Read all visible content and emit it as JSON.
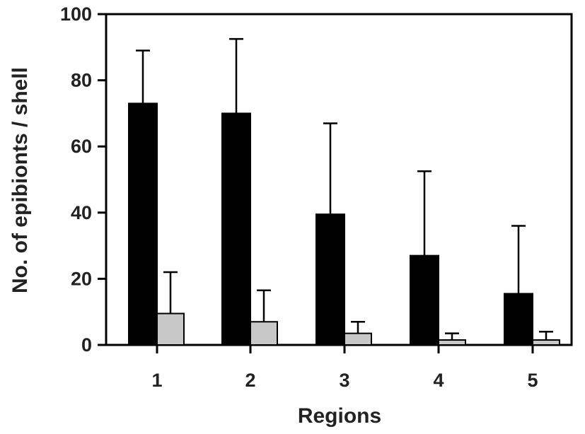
{
  "chart_data": {
    "type": "bar",
    "xlabel": "Regions",
    "ylabel": "No. of epibionts / shell",
    "ylim": [
      0,
      100
    ],
    "yticks": [
      "0",
      "20",
      "40",
      "60",
      "80",
      "100"
    ],
    "categories": [
      "1",
      "2",
      "3",
      "4",
      "5"
    ],
    "grid": false,
    "legend": "none",
    "error_bars": "upper only",
    "series": [
      {
        "color": "#000000",
        "values": [
          73,
          70,
          39.5,
          27,
          15.5
        ],
        "error_upper": [
          89,
          92.5,
          67,
          52.5,
          36
        ]
      },
      {
        "color": "#c8c8c8",
        "values": [
          9.5,
          7,
          3.5,
          1.5,
          1.5
        ],
        "error_upper": [
          22,
          16.5,
          7,
          3.5,
          4
        ]
      }
    ]
  }
}
